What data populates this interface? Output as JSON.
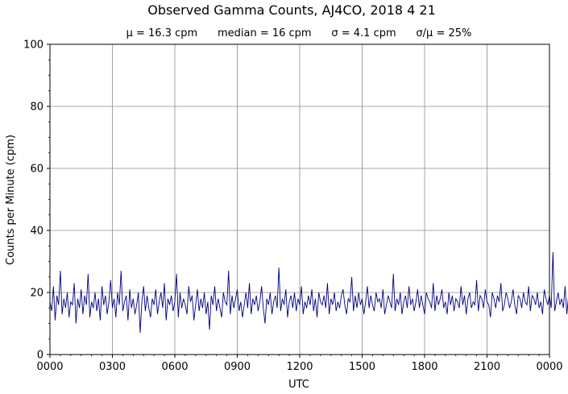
{
  "chart_data": {
    "type": "line",
    "title": "Observed Gamma Counts, AJ4CO, 2018 4 21",
    "subtitle": "μ = 16.3 cpm      median = 16 cpm      σ = 4.1 cpm      σ/μ = 25%",
    "xlabel": "UTC",
    "ylabel": "Counts per Minute (cpm)",
    "xlim": [
      0,
      1440
    ],
    "ylim": [
      0,
      100
    ],
    "x_ticks": [
      0,
      180,
      360,
      540,
      720,
      900,
      1080,
      1260,
      1440
    ],
    "x_tick_labels": [
      "0000",
      "0300",
      "0600",
      "0900",
      "1200",
      "1500",
      "1800",
      "2100",
      "0000"
    ],
    "y_ticks": [
      0,
      20,
      40,
      60,
      80,
      100
    ],
    "y_tick_labels": [
      "0",
      "20",
      "40",
      "60",
      "80",
      "100"
    ],
    "grid": true,
    "series_color": "#000080",
    "stats": {
      "mean_cpm": 16.3,
      "median_cpm": 16,
      "sigma_cpm": 4.1,
      "sigma_over_mean_pct": 25
    },
    "series": [
      {
        "x_start": 0,
        "x_step": 5,
        "values": [
          17,
          14,
          22,
          11,
          19,
          16,
          27,
          13,
          18,
          15,
          20,
          12,
          17,
          16,
          23,
          10,
          18,
          15,
          21,
          13,
          19,
          16,
          26,
          12,
          17,
          15,
          20,
          14,
          18,
          11,
          22,
          16,
          19,
          13,
          17,
          24,
          15,
          18,
          12,
          20,
          16,
          27,
          14,
          17,
          19,
          11,
          21,
          15,
          18,
          13,
          16,
          20,
          7,
          17,
          22,
          14,
          19,
          15,
          12,
          18,
          16,
          21,
          13,
          17,
          20,
          15,
          23,
          11,
          18,
          16,
          19,
          14,
          17,
          26,
          12,
          20,
          15,
          18,
          16,
          13,
          22,
          17,
          19,
          11,
          16,
          21,
          14,
          18,
          15,
          20,
          13,
          17,
          8,
          19,
          16,
          22,
          14,
          18,
          15,
          12,
          20,
          17,
          16,
          27,
          13,
          19,
          15,
          18,
          21,
          14,
          17,
          12,
          16,
          20,
          15,
          23,
          13,
          18,
          16,
          19,
          14,
          17,
          22,
          15,
          10,
          18,
          16,
          20,
          13,
          17,
          19,
          15,
          28,
          14,
          18,
          16,
          21,
          12,
          17,
          19,
          15,
          20,
          14,
          18,
          16,
          22,
          13,
          17,
          15,
          19,
          16,
          21,
          14,
          18,
          12,
          20,
          17,
          16,
          19,
          15,
          23,
          13,
          18,
          16,
          20,
          14,
          17,
          15,
          19,
          21,
          16,
          13,
          18,
          17,
          25,
          14,
          19,
          15,
          20,
          16,
          18,
          13,
          17,
          22,
          15,
          19,
          16,
          14,
          20,
          17,
          18,
          15,
          21,
          13,
          16,
          19,
          17,
          15,
          26,
          14,
          18,
          16,
          20,
          13,
          17,
          19,
          15,
          22,
          16,
          18,
          14,
          17,
          21,
          15,
          19,
          16,
          13,
          20,
          18,
          17,
          15,
          23,
          14,
          19,
          16,
          18,
          21,
          15,
          17,
          13,
          20,
          16,
          19,
          14,
          18,
          17,
          15,
          22,
          16,
          19,
          13,
          18,
          20,
          15,
          17,
          16,
          24,
          14,
          19,
          18,
          15,
          21,
          17,
          16,
          12,
          20,
          18,
          15,
          19,
          17,
          23,
          14,
          16,
          20,
          18,
          15,
          17,
          21,
          16,
          13,
          19,
          18,
          15,
          20,
          17,
          16,
          22,
          14,
          19,
          18,
          16,
          20,
          15,
          17,
          13,
          21,
          18,
          16,
          19,
          15,
          33,
          14,
          17,
          20,
          16,
          18,
          15,
          22,
          13,
          19,
          17,
          16,
          20,
          15,
          18,
          14,
          21,
          16,
          17,
          19,
          15,
          20,
          18,
          16
        ]
      }
    ]
  }
}
